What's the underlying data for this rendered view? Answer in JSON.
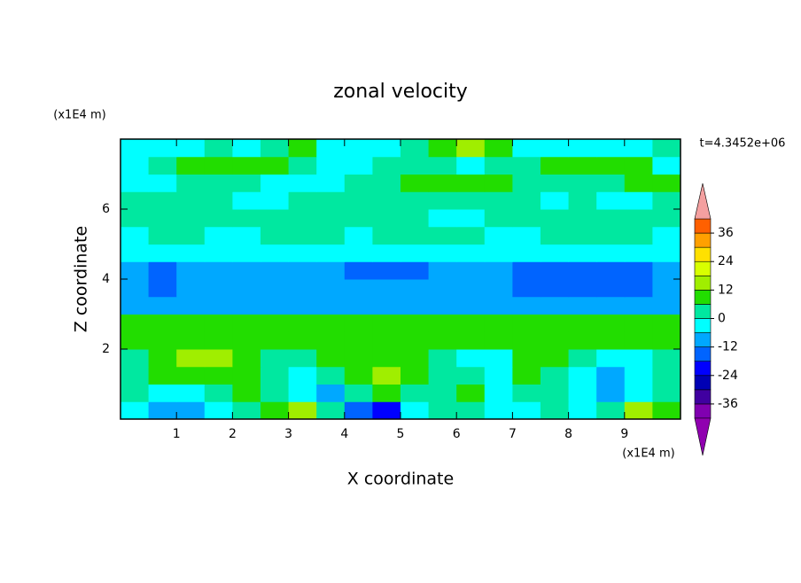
{
  "chart_data": {
    "type": "contourf",
    "title": "zonal velocity",
    "x_label": "X coordinate",
    "y_label": "Z coordinate",
    "x_unit": "(x1E4 m)",
    "y_unit": "(x1E4 m)",
    "time_label": "t=4.3452e+06",
    "xlim": [
      0,
      10
    ],
    "ylim": [
      0,
      8
    ],
    "xticks": [
      1,
      2,
      3,
      4,
      5,
      6,
      7,
      8,
      9
    ],
    "yticks": [
      2,
      4,
      6
    ],
    "x": [
      0.25,
      0.75,
      1.25,
      1.75,
      2.25,
      2.75,
      3.25,
      3.75,
      4.25,
      4.75,
      5.25,
      5.75,
      6.25,
      6.75,
      7.25,
      7.75,
      8.25,
      8.75,
      9.25,
      9.75
    ],
    "y": [
      0.25,
      0.75,
      1.25,
      1.75,
      2.25,
      2.75,
      3.25,
      3.75,
      4.25,
      4.75,
      5.25,
      5.75,
      6.25,
      6.75,
      7.25,
      7.75
    ],
    "z": [
      [
        -5,
        -8,
        -8,
        -4,
        2,
        10,
        14,
        4,
        -14,
        -20,
        -6,
        2,
        4,
        -4,
        -5,
        3,
        -5,
        2,
        14,
        10
      ],
      [
        2,
        -5,
        -4,
        3,
        6,
        3,
        -4,
        -8,
        2,
        8,
        4,
        3,
        6,
        -3,
        0,
        5,
        -5,
        -8,
        -4,
        4
      ],
      [
        4,
        8,
        10,
        9,
        6,
        2,
        -3,
        4,
        10,
        12,
        9,
        4,
        3,
        -2,
        6,
        5,
        -2,
        -8,
        -6,
        2
      ],
      [
        3,
        8,
        14,
        12,
        8,
        2,
        4,
        6,
        9,
        10,
        8,
        2,
        -2,
        -4,
        9,
        7,
        3,
        -3,
        -2,
        3
      ],
      [
        8,
        8,
        9,
        8,
        9,
        8,
        8,
        9,
        8,
        9,
        8,
        8,
        9,
        8,
        8,
        9,
        8,
        8,
        9,
        8
      ],
      [
        8,
        9,
        9,
        10,
        9,
        8,
        9,
        9,
        10,
        10,
        9,
        9,
        10,
        9,
        9,
        8,
        9,
        9,
        8,
        9
      ],
      [
        -8,
        -7,
        -8,
        -8,
        -7,
        -8,
        -8,
        -7,
        -8,
        -7,
        -8,
        -8,
        -7,
        -8,
        -8,
        -7,
        -8,
        -8,
        -7,
        -8
      ],
      [
        -10,
        -14,
        -10,
        -10,
        -10,
        -10,
        -10,
        -10,
        -10,
        -10,
        -10,
        -10,
        -10,
        -10,
        -14,
        -15,
        -15,
        -14,
        -14,
        -10
      ],
      [
        -10,
        -14,
        -10,
        -10,
        -9,
        -10,
        -10,
        -10,
        -14,
        -14,
        -14,
        -10,
        -10,
        -10,
        -14,
        -14,
        -15,
        -15,
        -14,
        -10
      ],
      [
        -4,
        -3,
        -3,
        -4,
        -3,
        -3,
        -4,
        -3,
        -3,
        -4,
        -3,
        -3,
        -4,
        -3,
        -3,
        -4,
        -3,
        -3,
        -4,
        -3
      ],
      [
        -2,
        2,
        2,
        -2,
        -3,
        3,
        3,
        2,
        -2,
        2,
        3,
        3,
        2,
        -2,
        -3,
        2,
        3,
        3,
        2,
        -2
      ],
      [
        3,
        3,
        4,
        2,
        3,
        4,
        3,
        2,
        3,
        4,
        3,
        -3,
        -2,
        3,
        4,
        3,
        3,
        2,
        3,
        4
      ],
      [
        4,
        4,
        3,
        4,
        -2,
        -3,
        2,
        3,
        4,
        3,
        2,
        3,
        4,
        3,
        3,
        -2,
        3,
        -3,
        -2,
        3
      ],
      [
        -3,
        -3,
        3,
        4,
        3,
        -2,
        -3,
        -2,
        3,
        4,
        8,
        9,
        8,
        7,
        4,
        3,
        3,
        4,
        8,
        8
      ],
      [
        -2,
        3,
        8,
        9,
        8,
        8,
        4,
        -3,
        -3,
        3,
        4,
        3,
        -3,
        3,
        4,
        8,
        9,
        8,
        8,
        -2
      ],
      [
        -3,
        -3,
        -2,
        3,
        -3,
        3,
        9,
        -2,
        -3,
        -2,
        4,
        8,
        14,
        8,
        -2,
        -3,
        -3,
        -2,
        -3,
        3
      ]
    ],
    "levels": [
      -42,
      -36,
      -30,
      -24,
      -18,
      -12,
      -6,
      0,
      6,
      12,
      18,
      24,
      30,
      36,
      42
    ],
    "colors": [
      "#8000b0",
      "#4000a0",
      "#0000b4",
      "#0000ff",
      "#0064ff",
      "#00a8ff",
      "#00ffff",
      "#00e8a0",
      "#22dd00",
      "#a0ee00",
      "#d8ff00",
      "#ffe000",
      "#ffa000",
      "#ff6000"
    ],
    "extend_colors": [
      "#9000b0",
      "#f4a0a0"
    ],
    "colorbar_ticks": [
      -36,
      -24,
      -12,
      0,
      12,
      24,
      36
    ]
  }
}
